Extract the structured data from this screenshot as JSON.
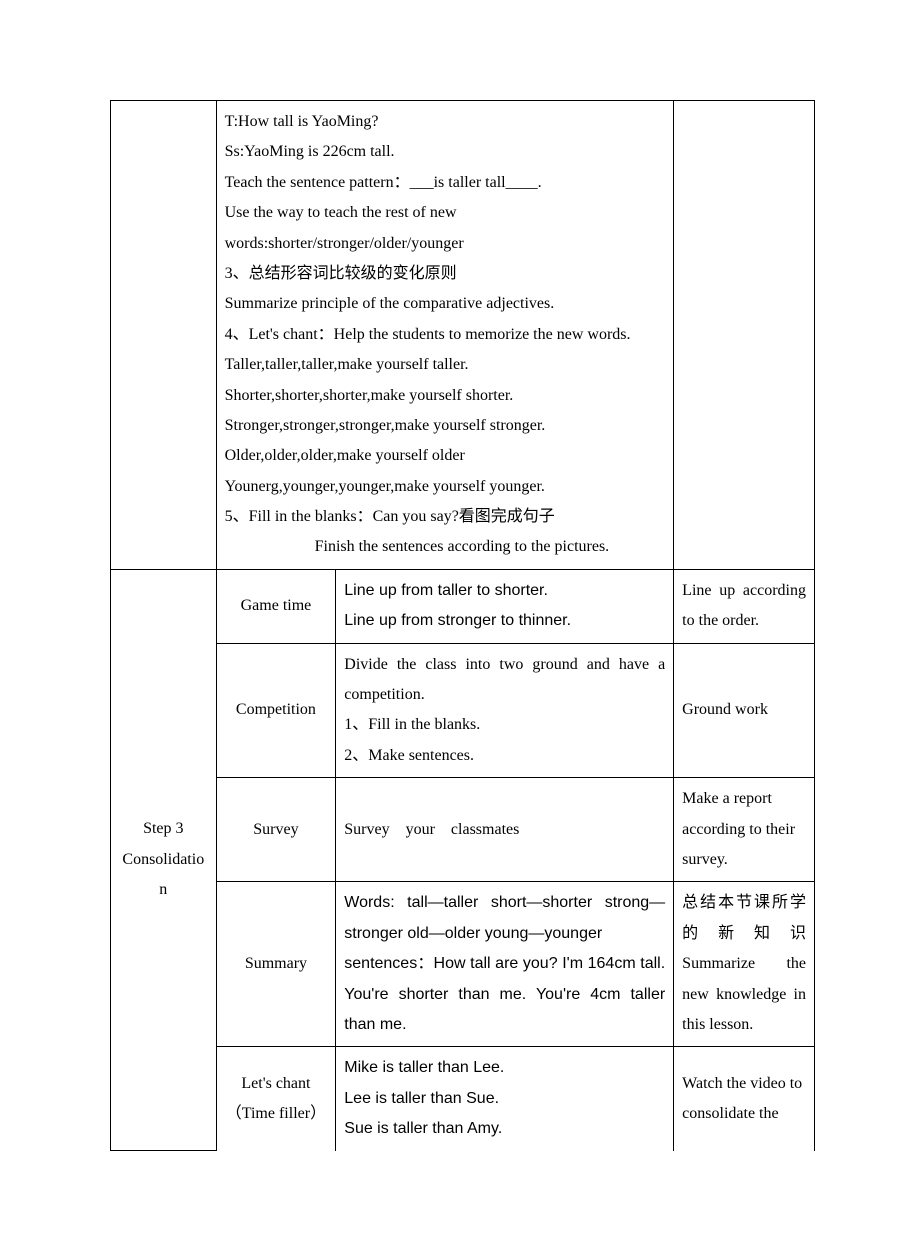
{
  "topRow": {
    "col1": "",
    "col2Lines": [
      "T:How tall is YaoMing?",
      "Ss:YaoMing is 226cm tall.",
      "Teach the sentence pattern：___is taller tall____.",
      "Use the way to teach the rest of new",
      "words:shorter/stronger/older/younger",
      "3、总结形容词比较级的变化原则",
      "Summarize principle of the comparative adjectives.",
      "4、Let's chant：Help the students to memorize the new words.",
      "Taller,taller,taller,make yourself taller.",
      "Shorter,shorter,shorter,make yourself shorter.",
      "Stronger,stronger,stronger,make yourself stronger.",
      "Older,older,older,make yourself older",
      "Younerg,younger,younger,make yourself younger.",
      "5、Fill in the blanks：Can you say?看图完成句子"
    ],
    "col2IndentLine": "Finish the sentences according to the pictures.",
    "col4": ""
  },
  "step3Label": "Step 3 Consolidation",
  "rows": [
    {
      "c2": "Game time",
      "c3": "Line up from taller to shorter.\nLine up from stronger to thinner.",
      "c3Arial": true,
      "c4": "Line up according to the order.",
      "c4Justify": true
    },
    {
      "c2": "Competition",
      "c3": "Divide the class into two ground and have a competition.\n1、Fill in the blanks.\n2、Make sentences.",
      "c3Arial": false,
      "c3JustifyFirstLine": true,
      "c4": "Ground work",
      "c4Justify": false
    },
    {
      "c2": "Survey",
      "c3": "Survey　your　classmates",
      "c3Arial": false,
      "c4": "Make a report according to their survey.",
      "c4Justify": false
    },
    {
      "c2": "Summary",
      "c3Parts": [
        {
          "text": "Words: tall—taller short—shorter strong—stronger old—older young—younger",
          "arial": true,
          "justify": true
        },
        {
          "text": "sentences：How tall are you? I'm 164cm tall. You're shorter than me. You're 4cm taller than me.",
          "arial": true,
          "justify": true
        }
      ],
      "c4": "总结本节课所学的新知识 Summarize the new knowledge in this lesson.",
      "c4Justify": true
    },
    {
      "c2": "Let's chant\n（Time filler）",
      "c3": "Mike is taller than Lee.\nLee is taller than Sue.\nSue is taller than Amy.",
      "c3Arial": true,
      "c4": "Watch the video to consolidate the",
      "c4Justify": false
    }
  ]
}
